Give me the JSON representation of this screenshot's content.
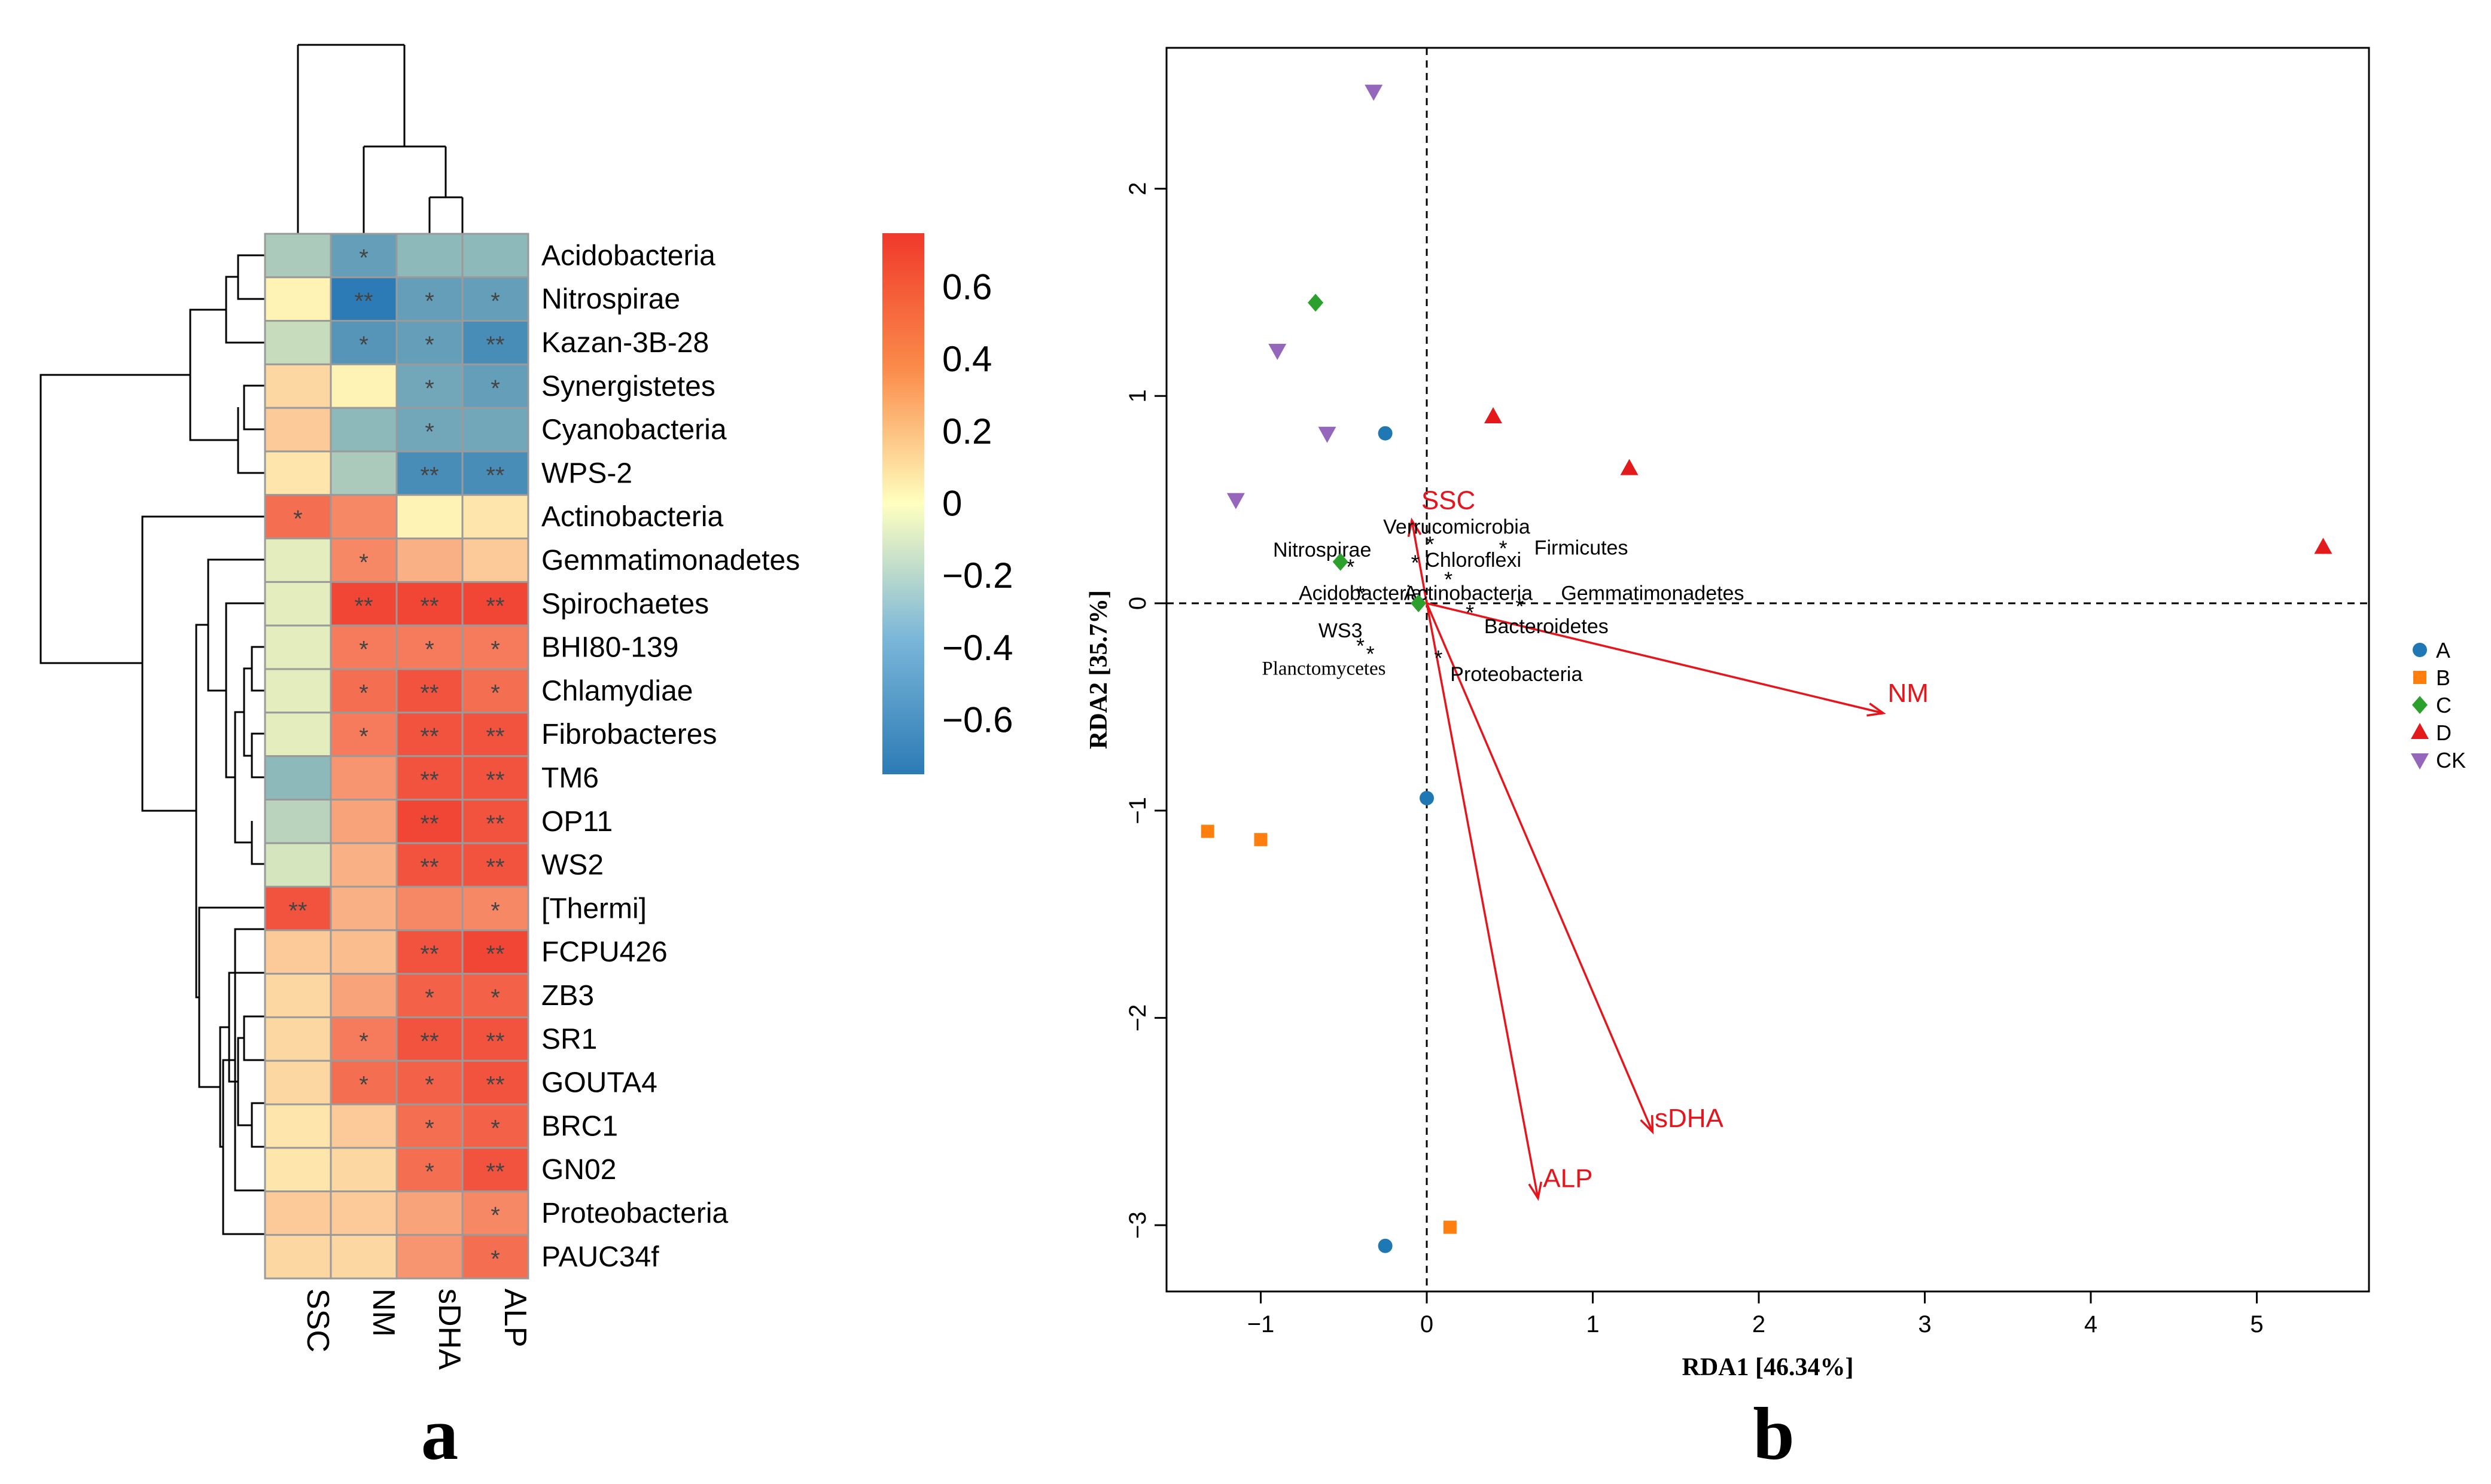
{
  "figure": {
    "panel_a_label": "a",
    "panel_b_label": "b"
  },
  "chart_data": [
    {
      "type": "heatmap",
      "title": "",
      "columns": [
        "SSC",
        "NM",
        "sDHA",
        "ALP"
      ],
      "rows": [
        "Acidobacteria",
        "Nitrospirae",
        "Kazan-3B-28",
        "Synergistetes",
        "Cyanobacteria",
        "WPS-2",
        "Actinobacteria",
        "Gemmatimonadetes",
        "Spirochaetes",
        "BHI80-139",
        "Chlamydiae",
        "Fibrobacteres",
        "TM6",
        "OP11",
        "WS2",
        "[Thermi]",
        "FCPU426",
        "ZB3",
        "SR1",
        "GOUTA4",
        "BRC1",
        "GN02",
        "Proteobacteria",
        "PAUC34f"
      ],
      "values": [
        [
          -0.3,
          -0.55,
          -0.4,
          -0.4
        ],
        [
          0.05,
          -0.75,
          -0.55,
          -0.55
        ],
        [
          -0.2,
          -0.6,
          -0.55,
          -0.65
        ],
        [
          0.15,
          0.05,
          -0.5,
          -0.55
        ],
        [
          0.2,
          -0.4,
          -0.5,
          -0.5
        ],
        [
          0.1,
          -0.3,
          -0.65,
          -0.65
        ],
        [
          0.55,
          0.45,
          0.05,
          0.1
        ],
        [
          -0.1,
          0.45,
          0.3,
          0.2
        ],
        [
          -0.1,
          0.7,
          0.7,
          0.7
        ],
        [
          -0.1,
          0.5,
          0.5,
          0.5
        ],
        [
          -0.1,
          0.55,
          0.65,
          0.55
        ],
        [
          -0.1,
          0.5,
          0.65,
          0.65
        ],
        [
          -0.4,
          0.4,
          0.65,
          0.65
        ],
        [
          -0.25,
          0.35,
          0.7,
          0.65
        ],
        [
          -0.15,
          0.3,
          0.65,
          0.65
        ],
        [
          0.65,
          0.3,
          0.45,
          0.45
        ],
        [
          0.2,
          0.25,
          0.65,
          0.7
        ],
        [
          0.15,
          0.35,
          0.6,
          0.6
        ],
        [
          0.15,
          0.5,
          0.65,
          0.65
        ],
        [
          0.15,
          0.55,
          0.6,
          0.65
        ],
        [
          0.1,
          0.2,
          0.55,
          0.6
        ],
        [
          0.1,
          0.15,
          0.55,
          0.65
        ],
        [
          0.2,
          0.2,
          0.35,
          0.45
        ],
        [
          0.15,
          0.15,
          0.4,
          0.55
        ]
      ],
      "significance": [
        [
          "",
          "*",
          "",
          ""
        ],
        [
          "",
          "**",
          "*",
          "*"
        ],
        [
          "",
          "*",
          "*",
          "**"
        ],
        [
          "",
          "",
          "*",
          "*"
        ],
        [
          "",
          "",
          "*",
          ""
        ],
        [
          "",
          "",
          "**",
          "**"
        ],
        [
          "*",
          "",
          "",
          ""
        ],
        [
          "",
          "*",
          "",
          ""
        ],
        [
          "",
          "**",
          "**",
          "**"
        ],
        [
          "",
          "*",
          "*",
          "*"
        ],
        [
          "",
          "*",
          "**",
          "*"
        ],
        [
          "",
          "*",
          "**",
          "**"
        ],
        [
          "",
          "",
          "**",
          "**"
        ],
        [
          "",
          "",
          "**",
          "**"
        ],
        [
          "",
          "",
          "**",
          "**"
        ],
        [
          "**",
          "",
          "",
          "*"
        ],
        [
          "",
          "",
          "**",
          "**"
        ],
        [
          "",
          "",
          "*",
          "*"
        ],
        [
          "",
          "*",
          "**",
          "**"
        ],
        [
          "",
          "*",
          "*",
          "**"
        ],
        [
          "",
          "",
          "*",
          "*"
        ],
        [
          "",
          "",
          "*",
          "**"
        ],
        [
          "",
          "",
          "",
          "*"
        ],
        [
          "",
          "",
          "",
          "*"
        ]
      ],
      "colorbar": {
        "range": [
          -0.75,
          0.75
        ],
        "ticks": [
          0.6,
          0.4,
          0.2,
          0,
          -0.2,
          -0.4,
          -0.6
        ],
        "tick_labels": [
          "0.6",
          "0.4",
          "0.2",
          "0",
          "−0.2",
          "−0.4",
          "−0.6"
        ],
        "low_color": "#2C7BB6",
        "mid_color": "#FFFFBF",
        "high_color": "#F0392B"
      }
    },
    {
      "type": "scatter",
      "title": "",
      "xlabel": "RDA1  [46.34%]",
      "ylabel": "RDA2  [35.7%]",
      "xlim": [
        -1.6,
        5.7
      ],
      "ylim": [
        -3.33,
        2.7
      ],
      "xticks": [
        -1,
        0,
        1,
        2,
        3,
        4,
        5
      ],
      "yticks": [
        -3,
        -2,
        -1,
        0,
        1,
        2
      ],
      "tick_labels_x": [
        "−1",
        "0",
        "1",
        "2",
        "3",
        "4",
        "5"
      ],
      "tick_labels_y": [
        "−3",
        "−2",
        "−1",
        "0",
        "1",
        "2"
      ],
      "legend_position": "right",
      "series": [
        {
          "name": "A",
          "marker": "circle",
          "color": "#1F77B4",
          "points": [
            [
              -0.25,
              0.82
            ],
            [
              0.0,
              -0.94
            ],
            [
              -0.25,
              -3.1
            ]
          ]
        },
        {
          "name": "B",
          "marker": "square",
          "color": "#FF7F0E",
          "points": [
            [
              -1.32,
              -1.1
            ],
            [
              -1.0,
              -1.14
            ],
            [
              0.14,
              -3.01
            ]
          ]
        },
        {
          "name": "C",
          "marker": "diamond",
          "color": "#2CA02C",
          "points": [
            [
              -0.67,
              1.45
            ],
            [
              -0.52,
              0.2
            ],
            [
              -0.05,
              0.0
            ]
          ]
        },
        {
          "name": "D",
          "marker": "triangle",
          "color": "#E31A1C",
          "points": [
            [
              0.4,
              0.9
            ],
            [
              1.22,
              0.65
            ],
            [
              5.4,
              0.27
            ]
          ]
        },
        {
          "name": "CK",
          "marker": "triangle-down",
          "color": "#9467BD",
          "points": [
            [
              -0.32,
              2.47
            ],
            [
              -0.9,
              1.22
            ],
            [
              -0.6,
              0.82
            ],
            [
              -1.15,
              0.5
            ]
          ]
        }
      ],
      "arrows": [
        {
          "label": "SSC",
          "x": -0.09,
          "y": 0.4
        },
        {
          "label": "NM",
          "x": 2.75,
          "y": -0.53
        },
        {
          "label": "sDHA",
          "x": 1.36,
          "y": -2.55
        },
        {
          "label": "ALP",
          "x": 0.67,
          "y": -2.87
        }
      ],
      "arrow_label_positions": [
        {
          "label": "SSC",
          "x": 0.13,
          "y": 0.5
        },
        {
          "label": "NM",
          "x": 2.9,
          "y": -0.43
        },
        {
          "label": "sDHA",
          "x": 1.58,
          "y": -2.48
        },
        {
          "label": "ALP",
          "x": 0.85,
          "y": -2.77
        }
      ],
      "phyla": [
        {
          "label": "Verrucomicrobia",
          "x": 0.02,
          "y": 0.29,
          "lx": 0.18,
          "ly": 0.37,
          "font": "sans"
        },
        {
          "label": "Firmicutes",
          "x": 0.46,
          "y": 0.27,
          "lx": 0.93,
          "ly": 0.27,
          "font": "sans"
        },
        {
          "label": "Chloroflexi",
          "x": -0.07,
          "y": 0.2,
          "lx": 0.28,
          "ly": 0.21,
          "font": "sans"
        },
        {
          "label": "Nitrospirae",
          "x": -0.46,
          "y": 0.18,
          "lx": -0.63,
          "ly": 0.26,
          "font": "sans"
        },
        {
          "label": "Actinobacteria",
          "x": 0.13,
          "y": 0.12,
          "lx": 0.25,
          "ly": 0.05,
          "font": "sans"
        },
        {
          "label": "Acidobacteria",
          "x": -0.4,
          "y": 0.05,
          "lx": -0.4,
          "ly": 0.05,
          "font": "sans"
        },
        {
          "label": "Gemmatimonadetes",
          "x": 0.56,
          "y": -0.01,
          "lx": 1.36,
          "ly": 0.05,
          "font": "sans"
        },
        {
          "label": "Bacteroidetes",
          "x": 0.26,
          "y": -0.04,
          "lx": 0.72,
          "ly": -0.11,
          "font": "sans"
        },
        {
          "label": "WS3",
          "x": -0.4,
          "y": -0.2,
          "lx": -0.52,
          "ly": -0.13,
          "font": "sans"
        },
        {
          "label": "Planctomycetes",
          "x": -0.34,
          "y": -0.24,
          "lx": -0.62,
          "ly": -0.31,
          "font": "serif"
        },
        {
          "label": "Proteobacteria",
          "x": 0.07,
          "y": -0.26,
          "lx": 0.54,
          "ly": -0.34,
          "font": "sans"
        }
      ]
    }
  ]
}
